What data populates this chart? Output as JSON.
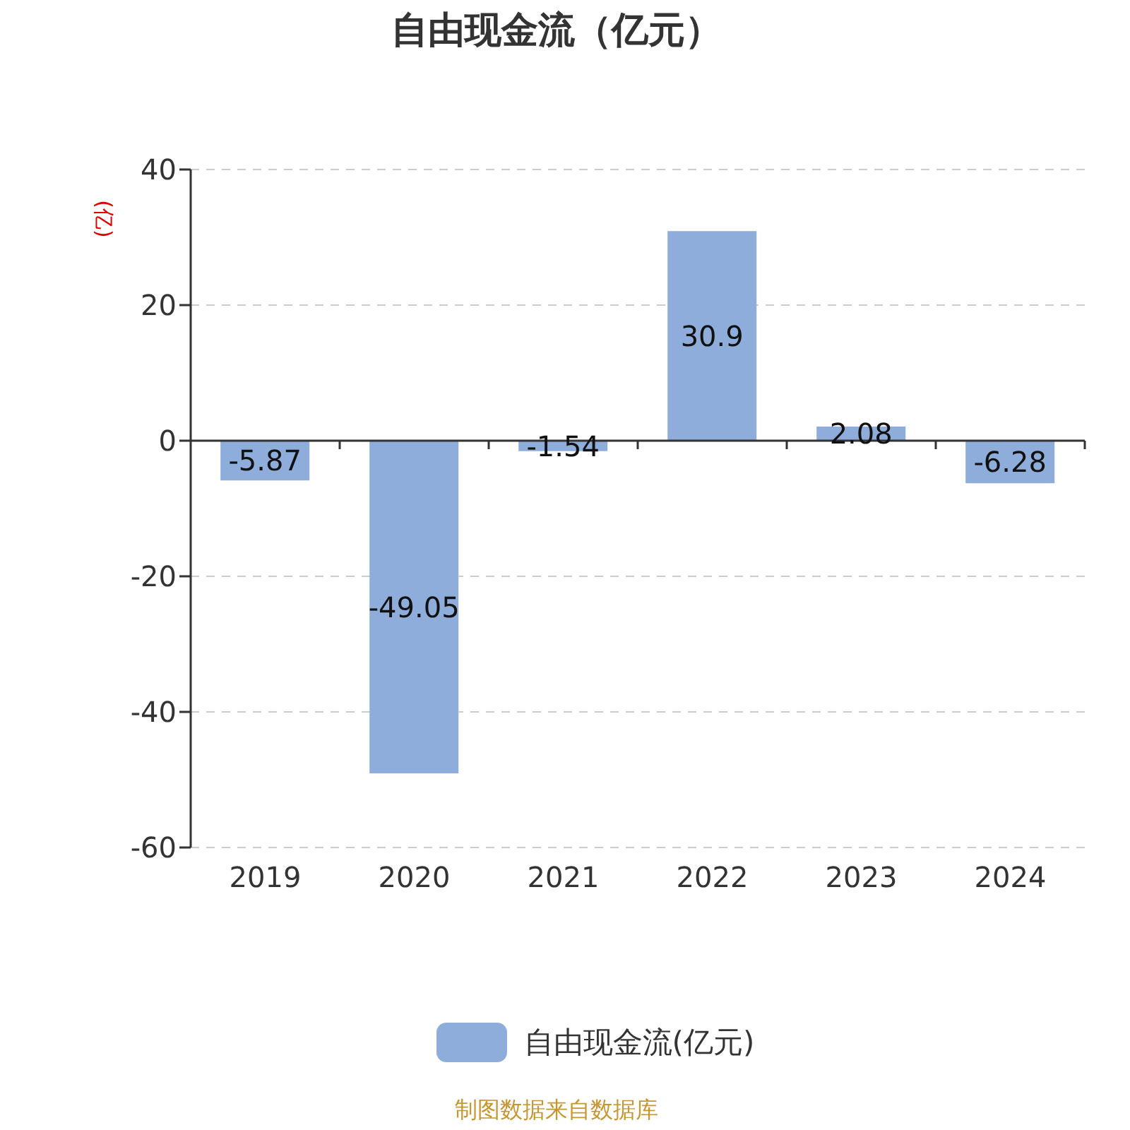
{
  "chart_data": {
    "type": "bar",
    "title": "自由现金流（亿元）",
    "ylabel": "(亿)",
    "categories": [
      "2019",
      "2020",
      "2021",
      "2022",
      "2023",
      "2024"
    ],
    "series": [
      {
        "name": "自由现金流(亿元)",
        "color": "#8eaddb",
        "values": [
          -5.87,
          -49.05,
          -1.54,
          30.9,
          2.08,
          -6.28
        ]
      }
    ],
    "ylim": [
      -60,
      40
    ],
    "yticks": [
      -60,
      -40,
      -20,
      0,
      20,
      40
    ],
    "grid": "y",
    "legend": "bottom",
    "data_labels": true,
    "annotations": [
      "制图数据来自数据库"
    ]
  }
}
